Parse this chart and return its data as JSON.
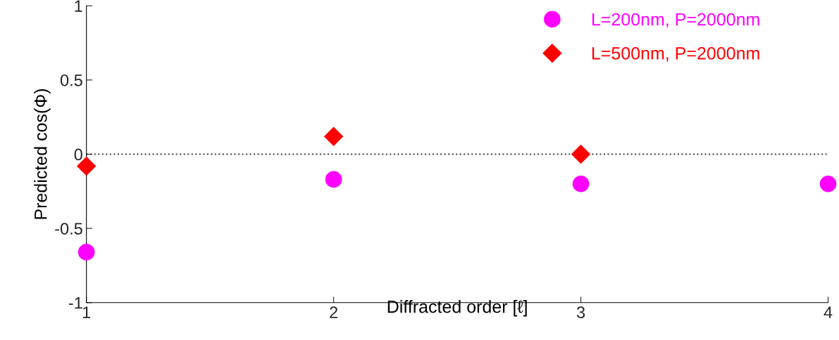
{
  "chart_data": {
    "type": "scatter",
    "xlabel": "Diffracted order [ℓ]",
    "ylabel": "Predicted cos(Φ)",
    "x": [
      1,
      2,
      3,
      4
    ],
    "series": [
      {
        "name": "L=200nm, P=2000nm",
        "color": "#ff00ff",
        "marker": "circle",
        "values": [
          -0.66,
          -0.17,
          -0.2,
          -0.2
        ]
      },
      {
        "name": "L=500nm, P=2000nm",
        "color": "#ff0000",
        "marker": "diamond",
        "values": [
          -0.08,
          0.12,
          0.0,
          null
        ]
      }
    ],
    "xlim": [
      1,
      4
    ],
    "xticks": [
      1,
      2,
      3,
      4
    ],
    "ylim": [
      -1,
      1
    ],
    "yticks": [
      -1,
      -0.5,
      0,
      0.5,
      1
    ],
    "ref_lines": [
      {
        "axis": "y",
        "value": 0,
        "color": "#404040",
        "line_style": "dotted"
      }
    ],
    "grid": false,
    "legend": "top right"
  }
}
